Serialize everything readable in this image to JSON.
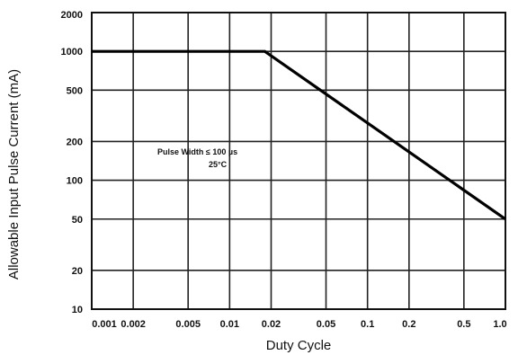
{
  "chart_data": {
    "type": "line",
    "xlabel": "Duty Cycle",
    "ylabel": "Allowable Input Pulse Current (mA)",
    "xscale": "log",
    "yscale": "log",
    "xlim": [
      0.001,
      1.0
    ],
    "ylim": [
      10,
      2000
    ],
    "x_ticks": [
      0.001,
      0.002,
      0.005,
      0.01,
      0.02,
      0.05,
      0.1,
      0.2,
      0.5,
      1.0
    ],
    "x_tick_labels": [
      "0.001",
      "0.002",
      "0.005",
      "0.01",
      "0.02",
      "0.05",
      "0.1",
      "0.2",
      "0.5",
      "1.0"
    ],
    "y_ticks": [
      10,
      20,
      50,
      100,
      200,
      500,
      1000,
      2000
    ],
    "y_tick_labels": [
      "10",
      "20",
      "50",
      "100",
      "200",
      "500",
      "1000",
      "2000"
    ],
    "grid": true,
    "annotations": [
      "Pulse Width ≤ 100 µs",
      "25°C"
    ],
    "series": [
      {
        "x": [
          0.001,
          0.018,
          1.0
        ],
        "y": [
          1000,
          1000,
          50
        ]
      }
    ]
  }
}
